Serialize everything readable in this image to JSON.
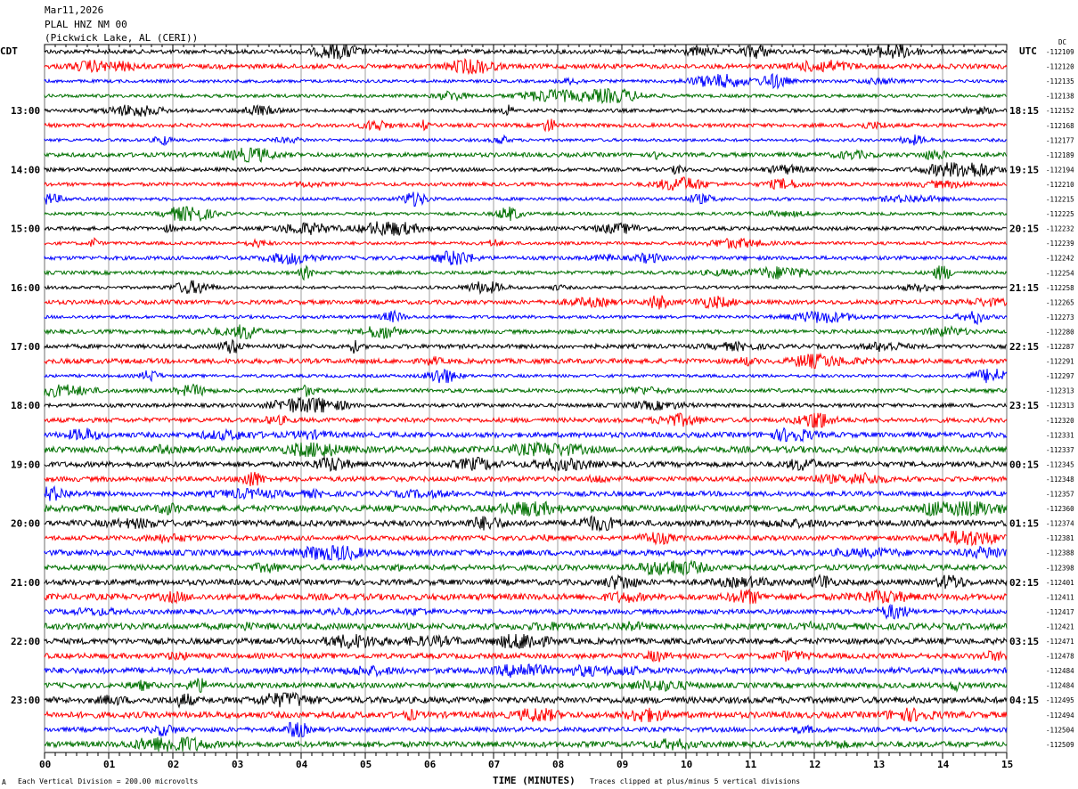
{
  "header": {
    "date": "Mar11,2026",
    "station": "PLAL HNZ NM 00",
    "location": "(Pickwick Lake, AL (CERI))"
  },
  "chart_data": {
    "type": "line",
    "subtype": "helicorder",
    "xlabel": "TIME (MINUTES)",
    "xlim": [
      0,
      15
    ],
    "x_ticks": [
      "00",
      "01",
      "02",
      "03",
      "04",
      "05",
      "06",
      "07",
      "08",
      "09",
      "10",
      "11",
      "12",
      "13",
      "14",
      "15"
    ],
    "left_axis_title": "CDT",
    "right_axis_title": "UTC",
    "dc_title": "DC",
    "left_hour_labels": [
      "13:00",
      "14:00",
      "15:00",
      "16:00",
      "17:00",
      "18:00",
      "19:00",
      "20:00",
      "21:00",
      "22:00",
      "23:00"
    ],
    "right_hour_labels": [
      "18:15",
      "19:15",
      "20:15",
      "21:15",
      "22:15",
      "23:15",
      "00:15",
      "01:15",
      "02:15",
      "03:15",
      "04:15"
    ],
    "trace_colors": [
      "#000000",
      "#ff0000",
      "#0000ff",
      "#007000"
    ],
    "dc_offsets": [
      "-112109",
      "-112120",
      "-112135",
      "-112138",
      "-112152",
      "-112168",
      "-112177",
      "-112189",
      "-112194",
      "-112210",
      "-112215",
      "-112225",
      "-112232",
      "-112239",
      "-112242",
      "-112254",
      "-112258",
      "-112265",
      "-112273",
      "-112280",
      "-112287",
      "-112291",
      "-112297",
      "-112313",
      "-112313",
      "-112320",
      "-112331",
      "-112337",
      "-112345",
      "-112348",
      "-112357",
      "-112360",
      "-112374",
      "-112381",
      "-112388",
      "-112398",
      "-112401",
      "-112411",
      "-112417",
      "-112421",
      "-112471",
      "-112478",
      "-112484",
      "-112484",
      "-112495",
      "-112494",
      "-112504",
      "-112509"
    ],
    "grid": true
  },
  "footer": {
    "scale_note": "Each Vertical Division =  200.00 microvolts",
    "clip_note": "Traces clipped at plus/minus 5 vertical divisions",
    "corner_mark": "A"
  }
}
